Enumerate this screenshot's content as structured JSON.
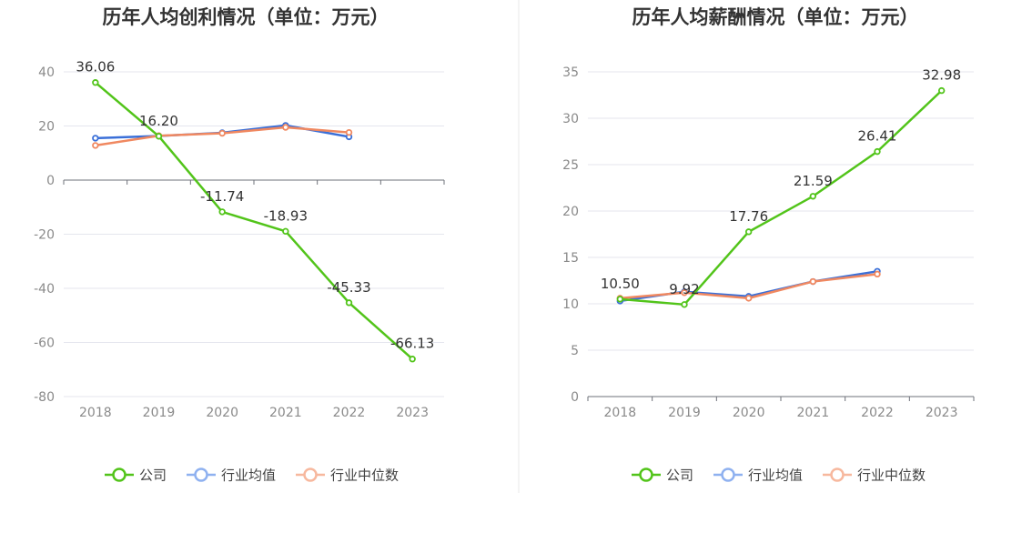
{
  "legend": {
    "company": "公司",
    "industry_avg": "行业均值",
    "industry_median": "行业中位数"
  },
  "colors": {
    "company": "#52c41a",
    "industry_avg": "#3a6fd8",
    "industry_median": "#f08860",
    "legend_avg": "#8fb1f0",
    "legend_median": "#f7b89e"
  },
  "chart_data": [
    {
      "type": "line",
      "title": "历年人均创利情况（单位：万元）",
      "categories": [
        "2018",
        "2019",
        "2020",
        "2021",
        "2022",
        "2023"
      ],
      "ylim": [
        -80,
        40
      ],
      "yticks": [
        40,
        20,
        0,
        -20,
        -40,
        -60,
        -80
      ],
      "series": [
        {
          "name": "公司",
          "key": "company",
          "values": [
            36.06,
            16.2,
            -11.74,
            -18.93,
            -45.33,
            -66.13
          ],
          "labels": [
            "36.06",
            "16.20",
            "-11.74",
            "-18.93",
            "-45.33",
            "-66.13"
          ]
        },
        {
          "name": "行业均值",
          "key": "industry_avg",
          "values": [
            15.5,
            16.3,
            17.5,
            20.2,
            16.0,
            null
          ]
        },
        {
          "name": "行业中位数",
          "key": "industry_median",
          "values": [
            12.8,
            16.4,
            17.3,
            19.5,
            17.6,
            null
          ]
        }
      ]
    },
    {
      "type": "line",
      "title": "历年人均薪酬情况（单位：万元）",
      "categories": [
        "2018",
        "2019",
        "2020",
        "2021",
        "2022",
        "2023"
      ],
      "ylim": [
        0,
        35
      ],
      "yticks": [
        35,
        30,
        25,
        20,
        15,
        10,
        5,
        0
      ],
      "series": [
        {
          "name": "公司",
          "key": "company",
          "values": [
            10.5,
            9.92,
            17.76,
            21.59,
            26.41,
            32.98
          ],
          "labels": [
            "10.50",
            "9.92",
            "17.76",
            "21.59",
            "26.41",
            "32.98"
          ]
        },
        {
          "name": "行业均值",
          "key": "industry_avg",
          "values": [
            10.3,
            11.3,
            10.8,
            12.4,
            13.5,
            null
          ]
        },
        {
          "name": "行业中位数",
          "key": "industry_median",
          "values": [
            10.6,
            11.2,
            10.6,
            12.4,
            13.2,
            null
          ]
        }
      ]
    }
  ]
}
